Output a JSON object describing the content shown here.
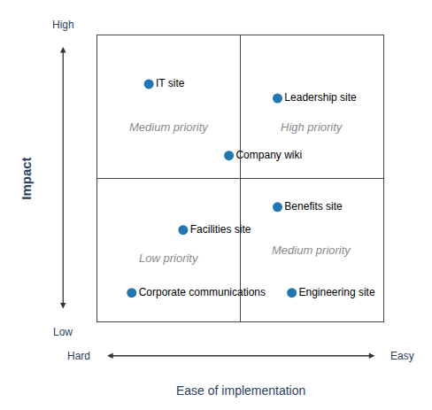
{
  "chart_data": {
    "type": "scatter",
    "x": [
      0.18,
      0.63,
      0.46,
      0.63,
      0.3,
      0.12,
      0.68
    ],
    "y": [
      0.83,
      0.78,
      0.58,
      0.4,
      0.32,
      0.1,
      0.1
    ],
    "point_labels": [
      "IT site",
      "Leadership site",
      "Company wiki",
      "Benefits site",
      "Facilities site",
      "Corporate communications",
      "Engineering site"
    ],
    "xlim": [
      0,
      1
    ],
    "ylim": [
      0,
      1
    ],
    "tick_labels": false,
    "grid": false,
    "xlabel": "Ease of implementation",
    "ylabel": "Impact",
    "x_low_label": "Hard",
    "x_high_label": "Easy",
    "y_low_label": "Low",
    "y_high_label": "High",
    "annotations": [
      {
        "text": "Medium priority",
        "x": 0.25,
        "y": 0.68
      },
      {
        "text": "High priority",
        "x": 0.75,
        "y": 0.68
      },
      {
        "text": "Low priority",
        "x": 0.25,
        "y": 0.22
      },
      {
        "text": "Medium priority",
        "x": 0.75,
        "y": 0.25
      }
    ]
  }
}
